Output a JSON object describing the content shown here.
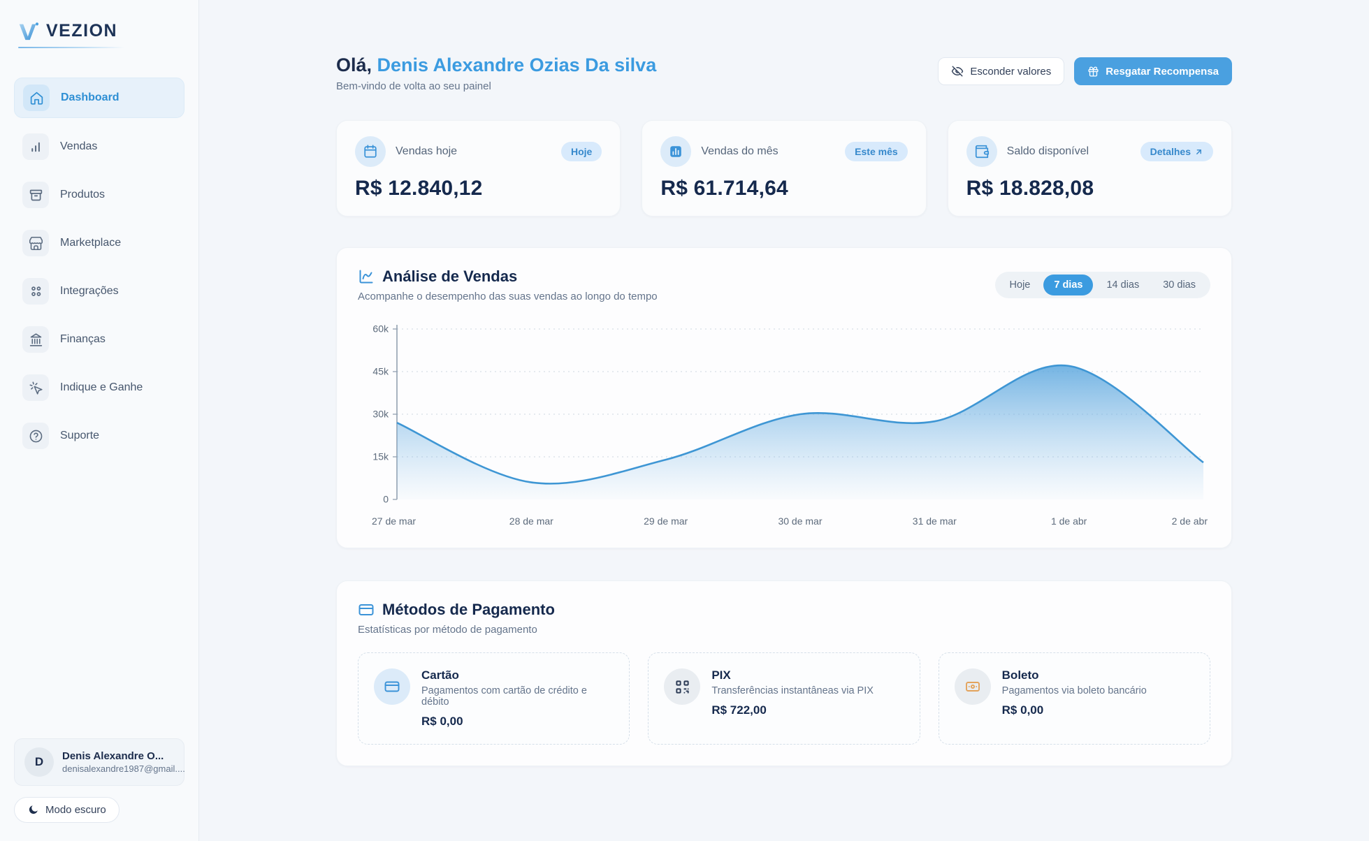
{
  "brand": {
    "name": "VEZION"
  },
  "sidebar": {
    "items": [
      {
        "label": "Dashboard",
        "icon": "home",
        "active": true
      },
      {
        "label": "Vendas",
        "icon": "bar-chart",
        "active": false
      },
      {
        "label": "Produtos",
        "icon": "archive-box",
        "active": false
      },
      {
        "label": "Marketplace",
        "icon": "store",
        "active": false
      },
      {
        "label": "Integrações",
        "icon": "dots-grid",
        "active": false
      },
      {
        "label": "Finanças",
        "icon": "bank",
        "active": false
      },
      {
        "label": "Indique e Ganhe",
        "icon": "pointer-click",
        "active": false
      },
      {
        "label": "Suporte",
        "icon": "help-circle",
        "active": false
      }
    ],
    "user": {
      "initial": "D",
      "name": "Denis Alexandre O...",
      "email": "denisalexandre1987@gmail...."
    },
    "dark_mode_label": "Modo escuro"
  },
  "header": {
    "greeting_prefix": "Olá, ",
    "user_name": "Denis Alexandre Ozias Da silva",
    "subtitle": "Bem-vindo de volta ao seu painel",
    "hide_values_label": "Esconder valores",
    "reward_label": "Resgatar Recompensa"
  },
  "stats": [
    {
      "label": "Vendas hoje",
      "value": "R$ 12.840,12",
      "badge": "Hoje",
      "icon": "calendar"
    },
    {
      "label": "Vendas do mês",
      "value": "R$ 61.714,64",
      "badge": "Este mês",
      "icon": "chart-column"
    },
    {
      "label": "Saldo disponível",
      "value": "R$ 18.828,08",
      "badge": "Detalhes",
      "icon": "wallet"
    }
  ],
  "sales_section": {
    "title": "Análise de Vendas",
    "subtitle": "Acompanhe o desempenho das suas vendas ao longo do tempo",
    "periods": [
      "Hoje",
      "7 dias",
      "14 dias",
      "30 dias"
    ],
    "active_period": "7 dias"
  },
  "chart_data": {
    "type": "area",
    "title": "Análise de Vendas",
    "x": [
      "27 de mar",
      "28 de mar",
      "29 de mar",
      "30 de mar",
      "31 de mar",
      "1 de abr",
      "2 de abr"
    ],
    "values": [
      27000,
      6000,
      14000,
      30000,
      27500,
      47000,
      13000
    ],
    "ylim": [
      0,
      60000
    ],
    "yticks": [
      "0",
      "15k",
      "30k",
      "45k",
      "60k"
    ],
    "grid": "dotted-horizontal",
    "legend": "none",
    "line_color": "#3e96d4",
    "fill_from": "rgba(86,164,221,0.82)",
    "fill_to": "rgba(147,197,235,0.04)"
  },
  "payments": {
    "title": "Métodos de Pagamento",
    "subtitle": "Estatísticas por método de pagamento",
    "methods": [
      {
        "name": "Cartão",
        "description": "Pagamentos com cartão de crédito e débito",
        "value": "R$ 0,00",
        "icon": "credit-card"
      },
      {
        "name": "PIX",
        "description": "Transferências instantâneas via PIX",
        "value": "R$ 722,00",
        "icon": "qr-code"
      },
      {
        "name": "Boleto",
        "description": "Pagamentos via boleto bancário",
        "value": "R$ 0,00",
        "icon": "banknote-barcode"
      }
    ]
  },
  "colors": {
    "accent_blue": "#3b9be0",
    "button_blue": "#4aa0e0",
    "navy_text": "#15294d",
    "badge_bg": "#d8eafc",
    "badge_text": "#3789cc",
    "boleto_orange": "#e3a35c"
  }
}
